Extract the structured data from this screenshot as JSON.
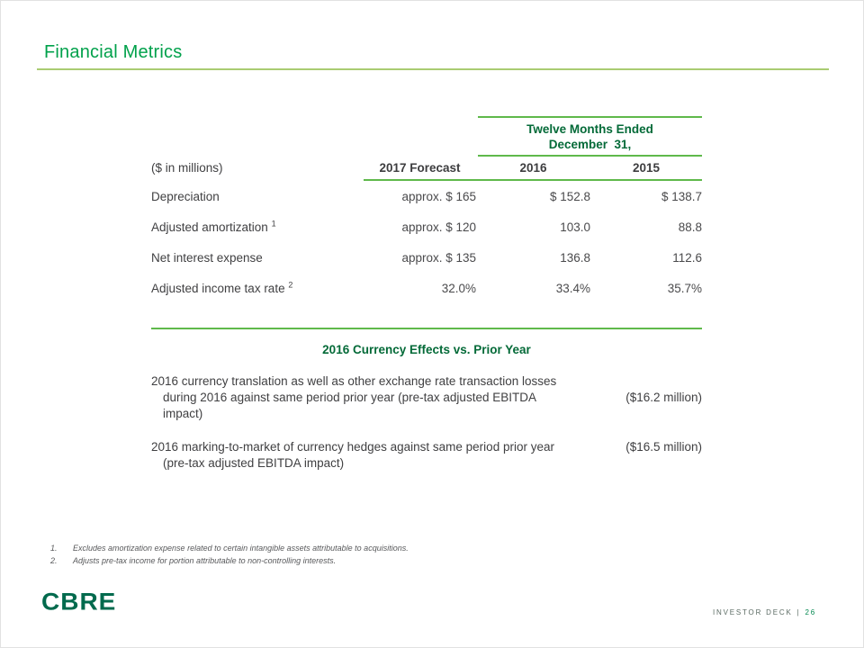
{
  "colors": {
    "title_green": "#00A14B",
    "heading_green": "#046A38",
    "rule_light_green": "#A9CC72",
    "rule_green": "#5FB94B",
    "text_dark": "#404042",
    "footnote_gray": "#58595B",
    "logo_green": "#006A4D",
    "footer_gray": "#5B6B63",
    "page_number_green": "#00874E"
  },
  "slide": {
    "title": "Financial Metrics",
    "logo_text": "CBRE",
    "footer": {
      "deck_label": "INVESTOR DECK",
      "separator": "|",
      "page_number": "26"
    }
  },
  "table": {
    "spanner_line1": "Twelve Months Ended",
    "spanner_line2": "December  31,",
    "unit_label": "($ in millions)",
    "columns": [
      "2017 Forecast",
      "2016",
      "2015"
    ],
    "rows": [
      {
        "label": "Depreciation",
        "sup": "",
        "f2017": "approx. $ 165",
        "y2016": "$ 152.8",
        "y2015": "$ 138.7"
      },
      {
        "label": "Adjusted amortization ",
        "sup": "1",
        "f2017": "approx. $ 120",
        "y2016": "103.0",
        "y2015": "88.8"
      },
      {
        "label": "Net interest expense",
        "sup": "",
        "f2017": "approx. $ 135",
        "y2016": "136.8",
        "y2015": "112.6"
      },
      {
        "label": "Adjusted income tax rate ",
        "sup": "2",
        "f2017": "32.0%",
        "y2016": "33.4%",
        "y2015": "35.7%"
      }
    ]
  },
  "currency_section": {
    "heading": "2016 Currency Effects vs. Prior Year",
    "items": [
      {
        "text": "2016 currency translation as well as other exchange rate transaction losses during 2016 against same period prior year (pre-tax adjusted EBITDA impact)",
        "value": "($16.2 million)"
      },
      {
        "text": "2016 marking-to-market of currency hedges against same period prior year (pre-tax adjusted EBITDA impact)",
        "value": "($16.5 million)"
      }
    ]
  },
  "footnotes": [
    {
      "num": "1.",
      "text": "Excludes amortization expense related to certain intangible assets attributable to acquisitions."
    },
    {
      "num": "2.",
      "text": "Adjusts pre-tax income for portion attributable to non-controlling interests."
    }
  ]
}
